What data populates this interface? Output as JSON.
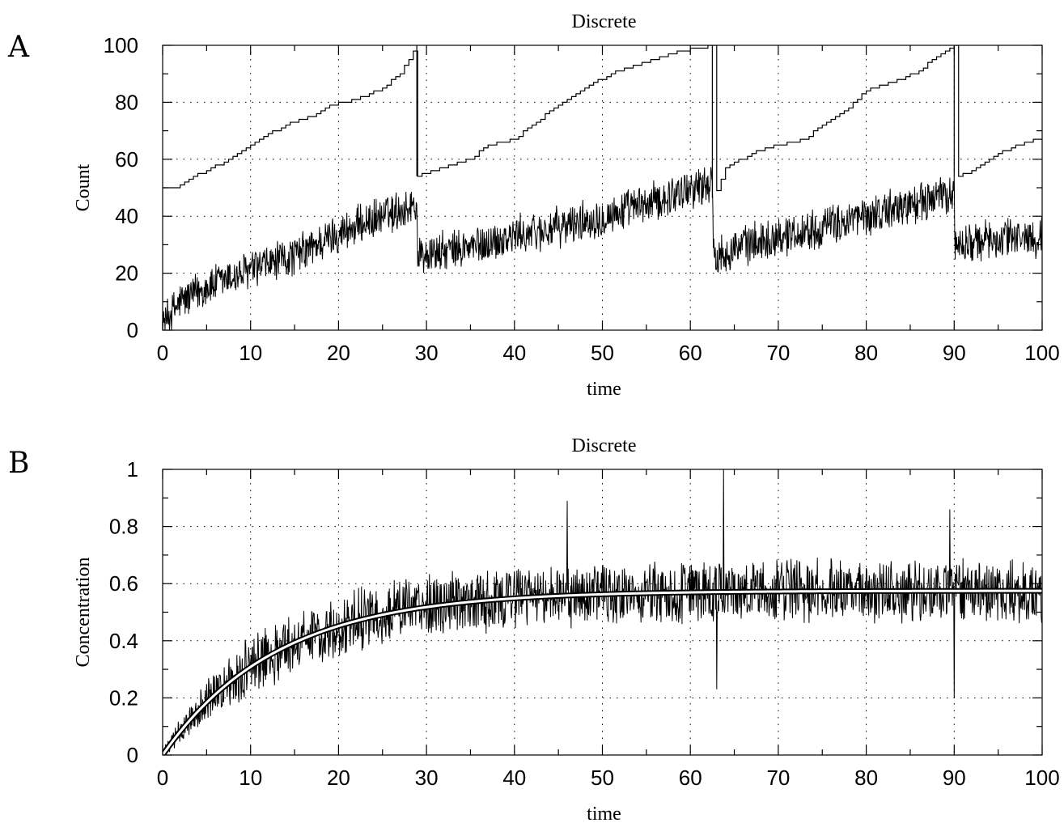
{
  "chart_data": [
    {
      "panel": "A",
      "type": "line",
      "title": "Discrete",
      "xlabel": "time",
      "ylabel": "Count",
      "xlim": [
        0,
        100
      ],
      "ylim": [
        0,
        100
      ],
      "xticks": [
        "0",
        "10",
        "20",
        "30",
        "40",
        "50",
        "60",
        "70",
        "80",
        "90",
        "100"
      ],
      "yticks": [
        "0",
        "20",
        "40",
        "60",
        "80",
        "100"
      ],
      "grid": true,
      "series": [
        {
          "style": "noisy",
          "resets": [
            29,
            62.6,
            90.1
          ],
          "mean": [
            [
              0,
              2
            ],
            [
              2,
              10
            ],
            [
              5,
              15
            ],
            [
              10,
              21
            ],
            [
              15,
              26
            ],
            [
              20,
              34
            ],
            [
              25,
              40
            ],
            [
              28.9,
              44
            ],
            [
              29,
              26
            ],
            [
              35,
              29
            ],
            [
              40,
              33
            ],
            [
              45,
              36
            ],
            [
              50,
              40
            ],
            [
              55,
              44
            ],
            [
              60,
              50
            ],
            [
              62.5,
              52
            ],
            [
              62.6,
              26
            ],
            [
              65,
              29
            ],
            [
              70,
              33
            ],
            [
              75,
              36
            ],
            [
              80,
              40
            ],
            [
              85,
              44
            ],
            [
              90,
              48
            ],
            [
              90.1,
              30
            ],
            [
              95,
              32
            ],
            [
              100,
              33
            ]
          ],
          "noise_amplitude": 8
        },
        {
          "style": "staircase",
          "points": [
            [
              0,
              50
            ],
            [
              1.5,
              50
            ],
            [
              3,
              53
            ],
            [
              5,
              56
            ],
            [
              7,
              59
            ],
            [
              9,
              63
            ],
            [
              11,
              67
            ],
            [
              14,
              72
            ],
            [
              17,
              75
            ],
            [
              19,
              79
            ],
            [
              21,
              80
            ],
            [
              23,
              82
            ],
            [
              25,
              85
            ],
            [
              27,
              90
            ],
            [
              28.3,
              97
            ],
            [
              28.9,
              100
            ],
            [
              29,
              54
            ],
            [
              31,
              56
            ],
            [
              33,
              58
            ],
            [
              35,
              60
            ],
            [
              37,
              65
            ],
            [
              40,
              67
            ],
            [
              42,
              72
            ],
            [
              45,
              79
            ],
            [
              48,
              85
            ],
            [
              51,
              90
            ],
            [
              54,
              93
            ],
            [
              57,
              96
            ],
            [
              59,
              98
            ],
            [
              62.5,
              100
            ],
            [
              62.6,
              46
            ],
            [
              64,
              57
            ],
            [
              67,
              62
            ],
            [
              70,
              65
            ],
            [
              73,
              67
            ],
            [
              75,
              72
            ],
            [
              78,
              78
            ],
            [
              80,
              84
            ],
            [
              82,
              86
            ],
            [
              84,
              88
            ],
            [
              86,
              91
            ],
            [
              88,
              96
            ],
            [
              90,
              100
            ],
            [
              90.1,
              54
            ],
            [
              92,
              56
            ],
            [
              95,
              62
            ],
            [
              98,
              66
            ],
            [
              100,
              67
            ]
          ]
        }
      ]
    },
    {
      "panel": "B",
      "type": "line",
      "title": "Discrete",
      "xlabel": "time",
      "ylabel": "Concentration",
      "xlim": [
        0,
        100
      ],
      "ylim": [
        0,
        1
      ],
      "xticks": [
        "0",
        "10",
        "20",
        "30",
        "40",
        "50",
        "60",
        "70",
        "80",
        "90",
        "100"
      ],
      "yticks": [
        "0",
        "0.2",
        "0.4",
        "0.6",
        "0.8",
        "1"
      ],
      "grid": true,
      "series": [
        {
          "style": "noisy",
          "mean_curve": "0.575*(1-exp(-t/13))",
          "noise_amplitude": 0.12,
          "spikes": [
            [
              63.8,
              1.0
            ],
            [
              63,
              0.23
            ],
            [
              46,
              0.89
            ],
            [
              89.5,
              0.86
            ],
            [
              90,
              0.2
            ]
          ]
        },
        {
          "style": "smooth",
          "function": "0.575*(1-exp(-t/13))",
          "color": "#ffffff"
        }
      ]
    }
  ],
  "panel_letters": [
    "A",
    "B"
  ]
}
